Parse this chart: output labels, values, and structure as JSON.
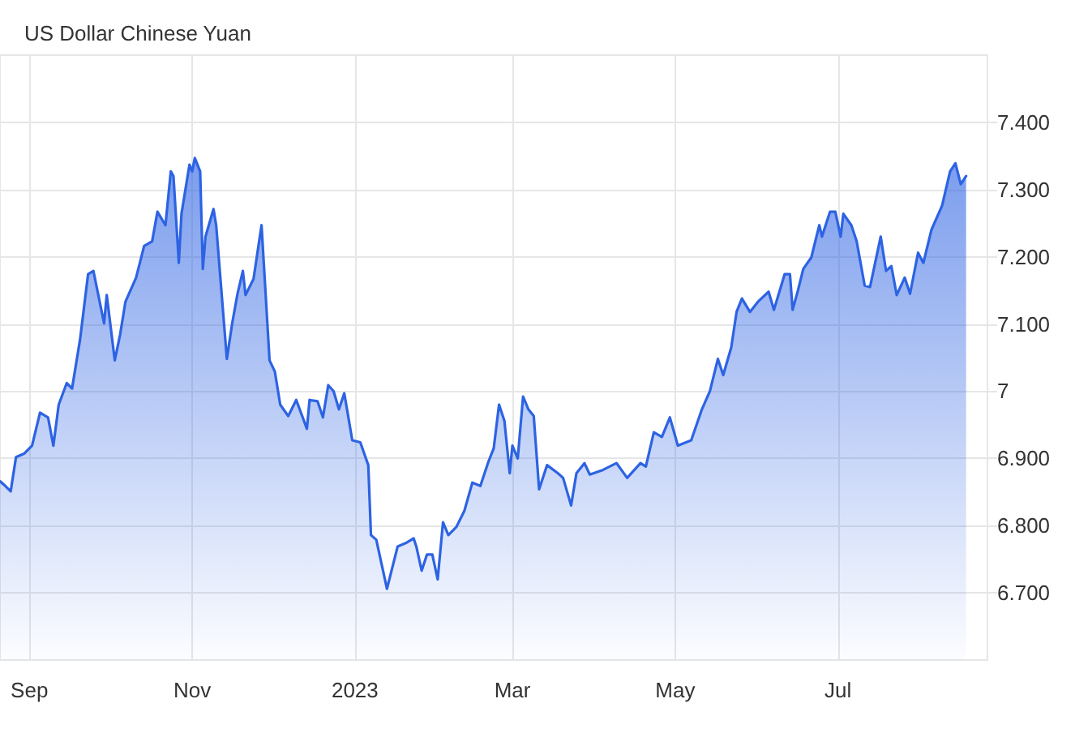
{
  "chart_data": {
    "type": "area",
    "title": "US Dollar Chinese Yuan",
    "x": [
      "2022-08-21",
      "2022-08-23",
      "2022-08-25",
      "2022-08-27",
      "2022-08-30",
      "2022-09-02",
      "2022-09-05",
      "2022-09-08",
      "2022-09-10",
      "2022-09-12",
      "2022-09-15",
      "2022-09-17",
      "2022-09-20",
      "2022-09-23",
      "2022-09-25",
      "2022-09-29",
      "2022-09-30",
      "2022-10-03",
      "2022-10-05",
      "2022-10-07",
      "2022-10-11",
      "2022-10-14",
      "2022-10-17",
      "2022-10-19",
      "2022-10-22",
      "2022-10-24",
      "2022-10-25",
      "2022-10-27",
      "2022-10-28",
      "2022-10-31",
      "2022-11-01",
      "2022-11-02",
      "2022-11-04",
      "2022-11-05",
      "2022-11-06",
      "2022-11-09",
      "2022-11-10",
      "2022-11-14",
      "2022-11-16",
      "2022-11-18",
      "2022-11-20",
      "2022-11-21",
      "2022-11-24",
      "2022-11-27",
      "2022-11-30",
      "2022-12-02",
      "2022-12-04",
      "2022-12-07",
      "2022-12-10",
      "2022-12-14",
      "2022-12-15",
      "2022-12-18",
      "2022-12-20",
      "2022-12-22",
      "2022-12-24",
      "2022-12-26",
      "2022-12-28",
      "2022-12-31",
      "2023-01-03",
      "2023-01-06",
      "2023-01-07",
      "2023-01-09",
      "2023-01-13",
      "2023-01-17",
      "2023-01-20",
      "2023-01-23",
      "2023-01-24",
      "2023-01-26",
      "2023-01-28",
      "2023-01-30",
      "2023-02-01",
      "2023-02-03",
      "2023-02-05",
      "2023-02-08",
      "2023-02-11",
      "2023-02-14",
      "2023-02-17",
      "2023-02-20",
      "2023-02-22",
      "2023-02-24",
      "2023-02-26",
      "2023-02-28",
      "2023-03-01",
      "2023-03-03",
      "2023-03-05",
      "2023-03-07",
      "2023-03-09",
      "2023-03-11",
      "2023-03-14",
      "2023-03-18",
      "2023-03-20",
      "2023-03-23",
      "2023-03-25",
      "2023-03-28",
      "2023-03-30",
      "2023-04-04",
      "2023-04-09",
      "2023-04-13",
      "2023-04-18",
      "2023-04-20",
      "2023-04-23",
      "2023-04-26",
      "2023-04-29",
      "2023-05-02",
      "2023-05-07",
      "2023-05-11",
      "2023-05-14",
      "2023-05-17",
      "2023-05-19",
      "2023-05-22",
      "2023-05-24",
      "2023-05-26",
      "2023-05-29",
      "2023-06-01",
      "2023-06-05",
      "2023-06-07",
      "2023-06-11",
      "2023-06-13",
      "2023-06-14",
      "2023-06-16",
      "2023-06-18",
      "2023-06-21",
      "2023-06-24",
      "2023-06-25",
      "2023-06-28",
      "2023-06-30",
      "2023-07-02",
      "2023-07-03",
      "2023-07-06",
      "2023-07-08",
      "2023-07-11",
      "2023-07-13",
      "2023-07-17",
      "2023-07-19",
      "2023-07-21",
      "2023-07-23",
      "2023-07-26",
      "2023-07-28",
      "2023-07-31",
      "2023-08-02",
      "2023-08-05",
      "2023-08-09",
      "2023-08-12",
      "2023-08-14",
      "2023-08-16",
      "2023-08-18"
    ],
    "series": [
      {
        "color": "#2d63e3",
        "values": [
          6.866,
          6.859,
          6.851,
          6.902,
          6.907,
          6.919,
          6.968,
          6.961,
          6.919,
          6.98,
          7.012,
          7.004,
          7.077,
          7.174,
          7.179,
          7.101,
          7.143,
          7.046,
          7.084,
          7.133,
          7.169,
          7.216,
          7.223,
          7.267,
          7.247,
          7.327,
          7.32,
          7.191,
          7.264,
          7.337,
          7.327,
          7.347,
          7.327,
          7.182,
          7.23,
          7.271,
          7.247,
          7.048,
          7.101,
          7.145,
          7.179,
          7.143,
          7.167,
          7.247,
          7.046,
          7.029,
          6.98,
          6.963,
          6.987,
          6.944,
          6.987,
          6.985,
          6.961,
          7.009,
          7.0,
          6.973,
          6.997,
          6.927,
          6.924,
          6.89,
          6.786,
          6.779,
          6.706,
          6.769,
          6.774,
          6.781,
          6.769,
          6.733,
          6.757,
          6.757,
          6.72,
          6.805,
          6.786,
          6.798,
          6.822,
          6.864,
          6.859,
          6.895,
          6.915,
          6.98,
          6.956,
          6.878,
          6.919,
          6.9,
          6.992,
          6.973,
          6.963,
          6.854,
          6.89,
          6.878,
          6.871,
          6.83,
          6.878,
          6.893,
          6.876,
          6.883,
          6.893,
          6.871,
          6.893,
          6.888,
          6.939,
          6.932,
          6.961,
          6.919,
          6.927,
          6.973,
          7.0,
          7.048,
          7.024,
          7.065,
          7.118,
          7.138,
          7.118,
          7.133,
          7.148,
          7.121,
          7.174,
          7.174,
          7.121,
          7.15,
          7.182,
          7.199,
          7.247,
          7.23,
          7.267,
          7.267,
          7.23,
          7.264,
          7.247,
          7.223,
          7.157,
          7.155,
          7.23,
          7.179,
          7.186,
          7.143,
          7.169,
          7.145,
          7.206,
          7.191,
          7.24,
          7.276,
          7.327,
          7.339,
          7.308,
          7.32
        ]
      }
    ],
    "xlim": [
      "2022-08-21",
      "2023-08-26"
    ],
    "xticks": [
      {
        "value": "2022-09-01",
        "label": "Sep"
      },
      {
        "value": "2022-11-01",
        "label": "Nov"
      },
      {
        "value": "2023-01-01",
        "label": "2023"
      },
      {
        "value": "2023-03-01",
        "label": "Mar"
      },
      {
        "value": "2023-05-01",
        "label": "May"
      },
      {
        "value": "2023-07-01",
        "label": "Jul"
      }
    ],
    "ylim": [
      6.6,
      7.5
    ],
    "yticks": [
      {
        "value": 6.7,
        "label": "6.700"
      },
      {
        "value": 6.8,
        "label": "6.800"
      },
      {
        "value": 6.9,
        "label": "6.900"
      },
      7,
      {
        "value": 7.1,
        "label": "7.100"
      },
      {
        "value": 7.2,
        "label": "7.200"
      },
      {
        "value": 7.3,
        "label": "7.300"
      },
      {
        "value": 7.4,
        "label": "7.400"
      }
    ],
    "grid": true,
    "marker": "none",
    "line_style": "solid"
  }
}
